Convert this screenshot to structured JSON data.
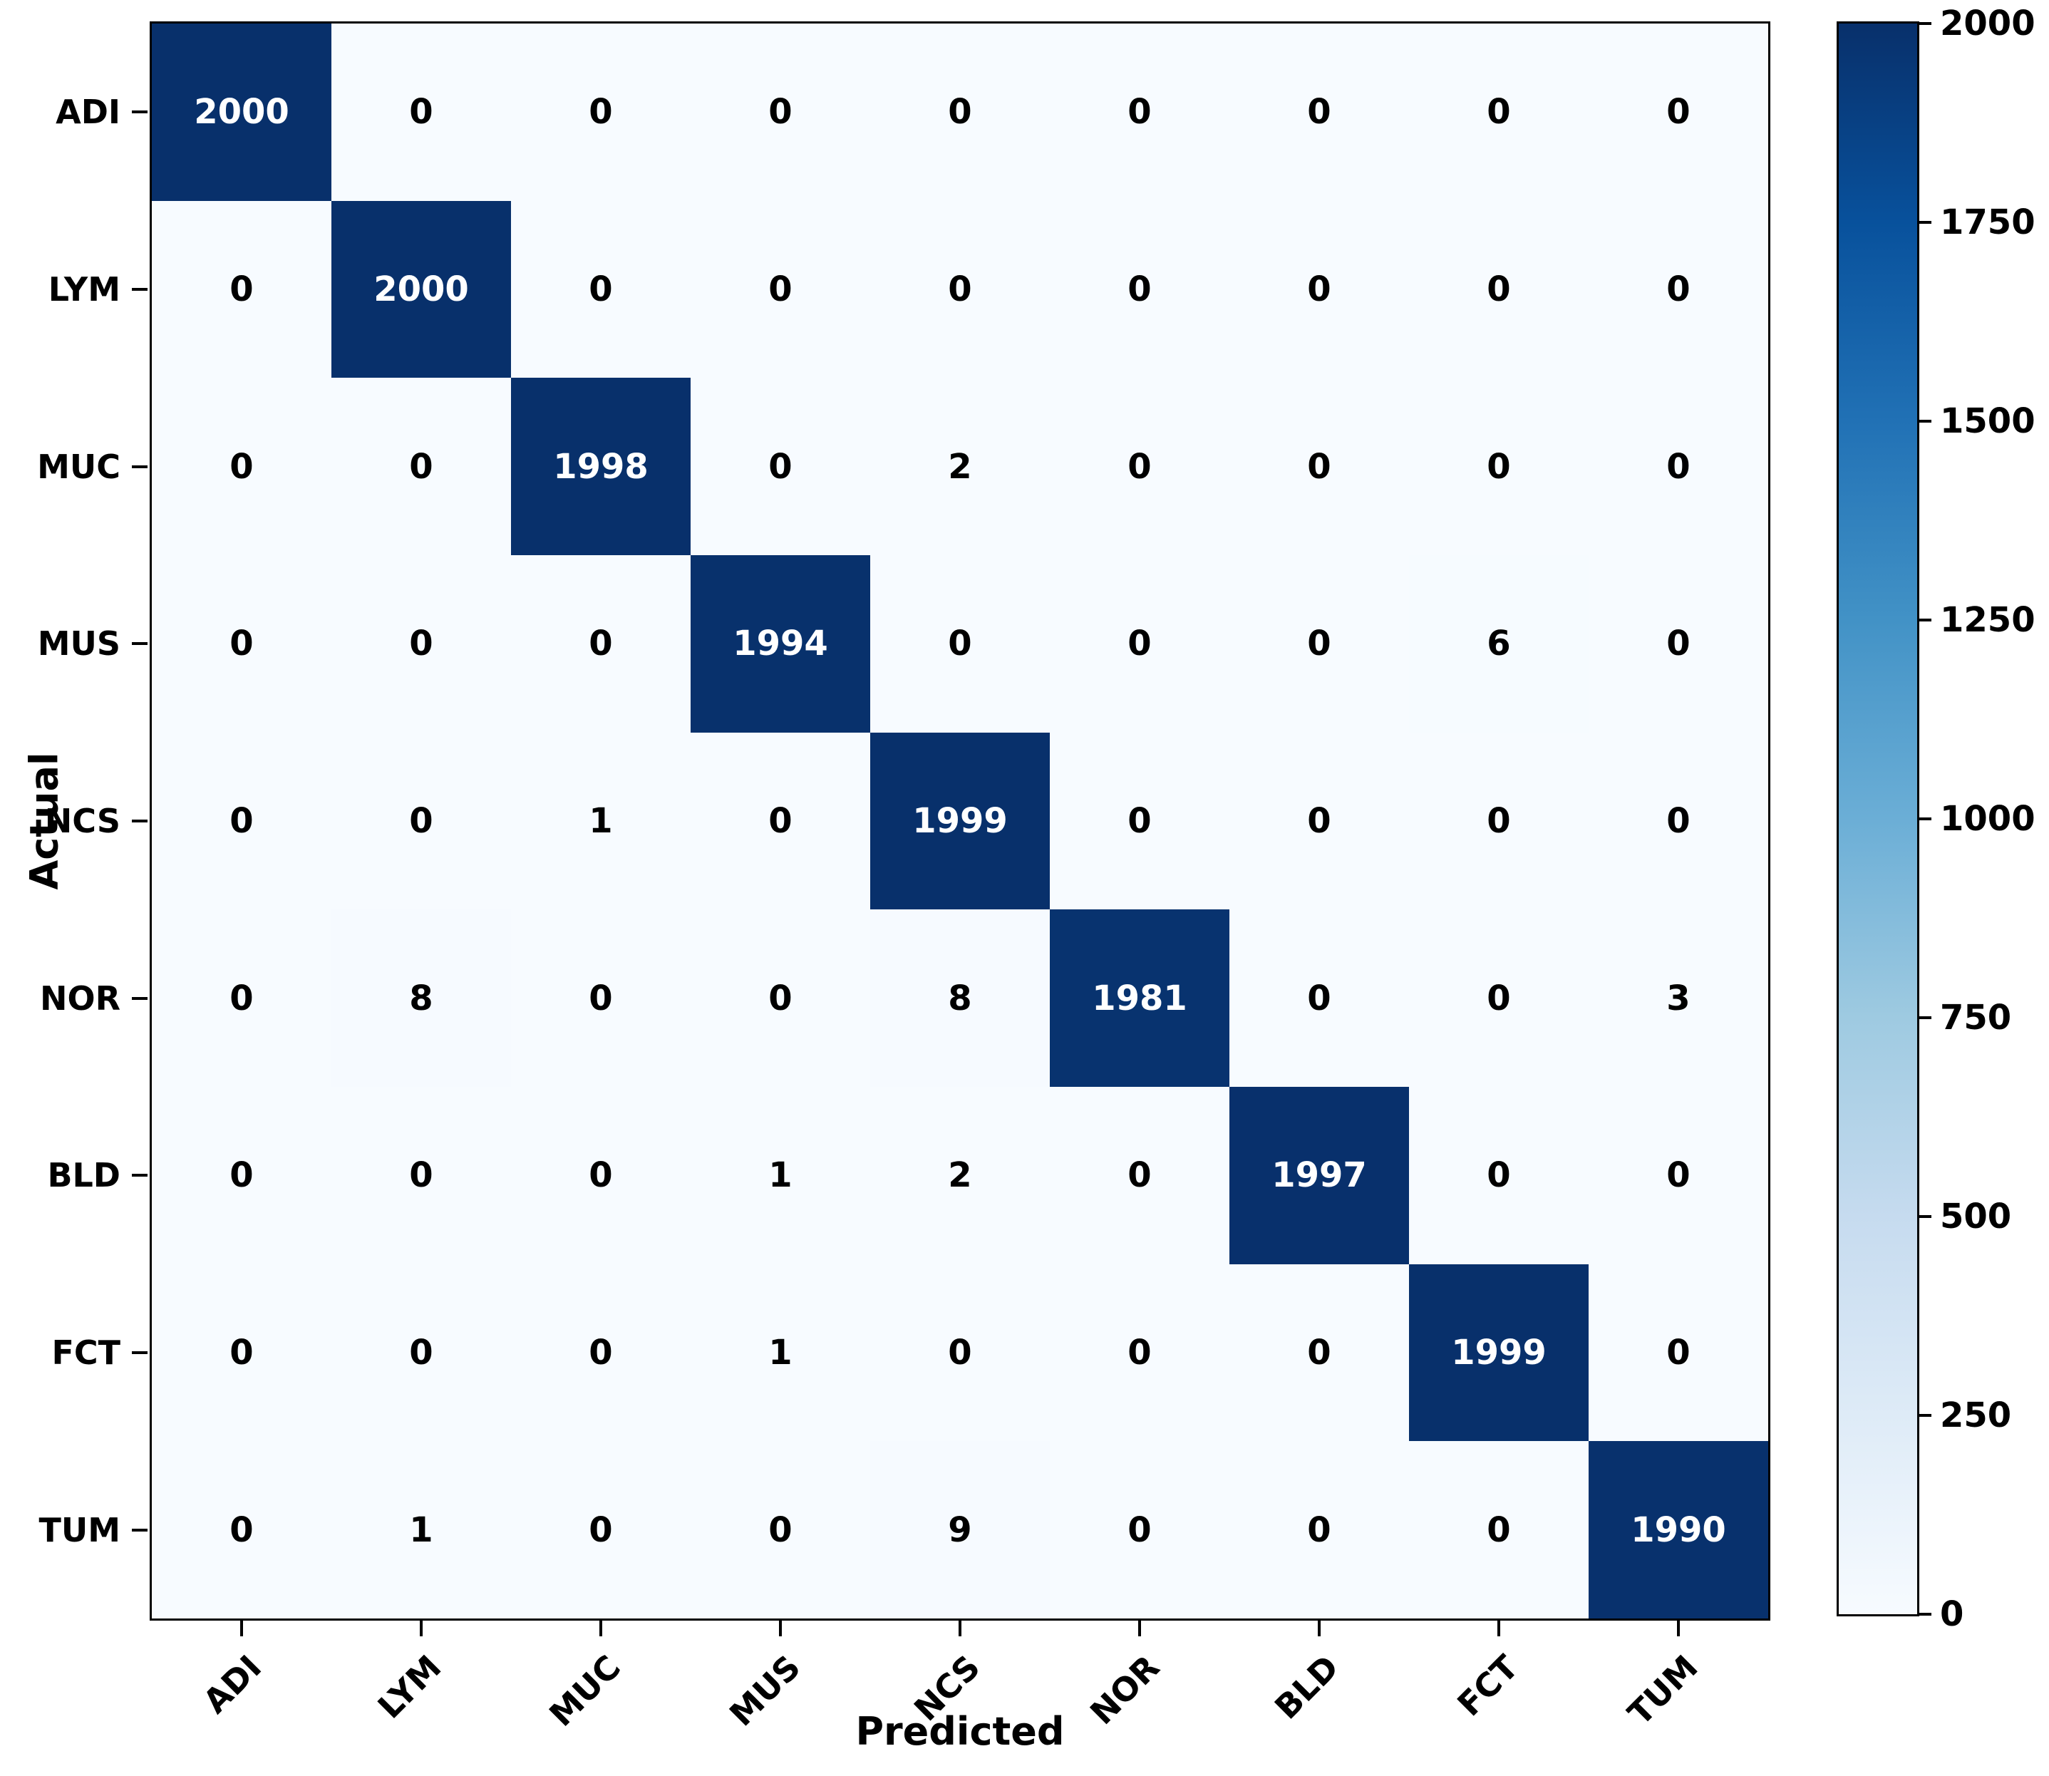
{
  "figure": {
    "xlabel": "Predicted",
    "ylabel": "Actual"
  },
  "chart_data": {
    "type": "heatmap",
    "title": "",
    "xlabel": "Predicted",
    "ylabel": "Actual",
    "categories": [
      "ADI",
      "LYM",
      "MUC",
      "MUS",
      "NCS",
      "NOR",
      "BLD",
      "FCT",
      "TUM"
    ],
    "rows": [
      {
        "label": "ADI",
        "values": [
          2000,
          0,
          0,
          0,
          0,
          0,
          0,
          0,
          0
        ]
      },
      {
        "label": "LYM",
        "values": [
          0,
          2000,
          0,
          0,
          0,
          0,
          0,
          0,
          0
        ]
      },
      {
        "label": "MUC",
        "values": [
          0,
          0,
          1998,
          0,
          2,
          0,
          0,
          0,
          0
        ]
      },
      {
        "label": "MUS",
        "values": [
          0,
          0,
          0,
          1994,
          0,
          0,
          0,
          6,
          0
        ]
      },
      {
        "label": "NCS",
        "values": [
          0,
          0,
          1,
          0,
          1999,
          0,
          0,
          0,
          0
        ]
      },
      {
        "label": "NOR",
        "values": [
          0,
          8,
          0,
          0,
          8,
          1981,
          0,
          0,
          3
        ]
      },
      {
        "label": "BLD",
        "values": [
          0,
          0,
          0,
          1,
          2,
          0,
          1997,
          0,
          0
        ]
      },
      {
        "label": "FCT",
        "values": [
          0,
          0,
          0,
          1,
          0,
          0,
          0,
          1999,
          0
        ]
      },
      {
        "label": "TUM",
        "values": [
          0,
          1,
          0,
          0,
          9,
          0,
          0,
          0,
          1990
        ]
      }
    ],
    "vmin": 0,
    "vmax": 2000,
    "grid": false,
    "legend_position": "right-colorbar",
    "colorbar_ticks": [
      0,
      250,
      500,
      750,
      1000,
      1250,
      1500,
      1750,
      2000
    ],
    "colormap": {
      "name": "Blues",
      "stops": [
        "#f7fbff",
        "#deebf7",
        "#c6dbef",
        "#9ecae1",
        "#6baed6",
        "#4292c6",
        "#2171b5",
        "#08519c",
        "#08306b"
      ]
    },
    "annotation_text_dark": "#000000",
    "annotation_text_light": "#ffffff"
  }
}
